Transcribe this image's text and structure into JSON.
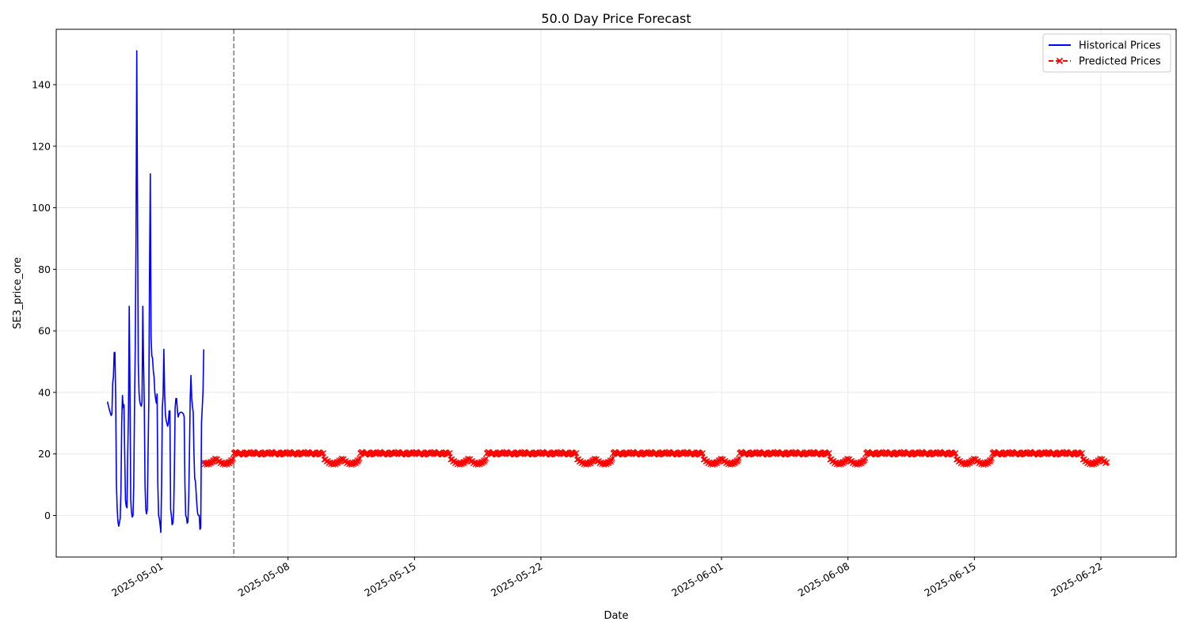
{
  "chart_data": {
    "type": "line",
    "title": "50.0 Day Price Forecast",
    "xlabel": "Date",
    "ylabel": "SE3_price_ore",
    "xlim": [
      "2025-04-25T04:00",
      "2025-06-26T04:00"
    ],
    "ylim": [
      -13.5,
      158
    ],
    "x_ticks": [
      "2025-05-01",
      "2025-05-08",
      "2025-05-15",
      "2025-05-22",
      "2025-06-01",
      "2025-06-08",
      "2025-06-15",
      "2025-06-22"
    ],
    "y_ticks": [
      0,
      20,
      40,
      60,
      80,
      100,
      120,
      140
    ],
    "grid": true,
    "legend_position": "top-right",
    "forecast_start": "2025-05-05T00:00",
    "colors": {
      "historical": "#0000ff",
      "predicted": "#ff0000",
      "divider": "#808080",
      "grid": "#e6e6e6"
    },
    "series": [
      {
        "name": "Historical Prices",
        "style": "solid",
        "points": [
          [
            "2025-04-28T00:00",
            37
          ],
          [
            "2025-04-28T03:00",
            34
          ],
          [
            "2025-04-28T05:00",
            32.5
          ],
          [
            "2025-04-28T06:00",
            33
          ],
          [
            "2025-04-28T07:00",
            43
          ],
          [
            "2025-04-28T08:00",
            45
          ],
          [
            "2025-04-28T09:00",
            53
          ],
          [
            "2025-04-28T10:00",
            53
          ],
          [
            "2025-04-28T11:00",
            38
          ],
          [
            "2025-04-28T12:00",
            10
          ],
          [
            "2025-04-28T13:00",
            2
          ],
          [
            "2025-04-28T14:00",
            -2
          ],
          [
            "2025-04-28T15:00",
            -3.5
          ],
          [
            "2025-04-28T17:00",
            -1
          ],
          [
            "2025-04-28T18:00",
            8
          ],
          [
            "2025-04-28T19:00",
            30
          ],
          [
            "2025-04-28T20:00",
            39
          ],
          [
            "2025-04-28T21:00",
            35
          ],
          [
            "2025-04-28T22:00",
            36
          ],
          [
            "2025-04-28T23:00",
            20
          ],
          [
            "2025-04-29T00:00",
            5
          ],
          [
            "2025-04-29T01:00",
            3
          ],
          [
            "2025-04-29T02:00",
            2.5
          ],
          [
            "2025-04-29T03:00",
            20
          ],
          [
            "2025-04-29T04:00",
            34
          ],
          [
            "2025-04-29T05:00",
            68
          ],
          [
            "2025-04-29T06:00",
            40
          ],
          [
            "2025-04-29T07:00",
            5
          ],
          [
            "2025-04-29T08:00",
            1
          ],
          [
            "2025-04-29T09:00",
            -0.5
          ],
          [
            "2025-04-29T10:00",
            0
          ],
          [
            "2025-04-29T11:00",
            10
          ],
          [
            "2025-04-29T12:00",
            35
          ],
          [
            "2025-04-29T13:00",
            55
          ],
          [
            "2025-04-29T14:00",
            90
          ],
          [
            "2025-04-29T15:00",
            151
          ],
          [
            "2025-04-29T16:00",
            100
          ],
          [
            "2025-04-29T17:00",
            50
          ],
          [
            "2025-04-29T18:00",
            40
          ],
          [
            "2025-04-29T19:00",
            37
          ],
          [
            "2025-04-29T20:00",
            36
          ],
          [
            "2025-04-29T21:00",
            35.5
          ],
          [
            "2025-04-29T22:00",
            37
          ],
          [
            "2025-04-29T23:00",
            68
          ],
          [
            "2025-04-30T00:00",
            50
          ],
          [
            "2025-04-30T01:00",
            36
          ],
          [
            "2025-04-30T02:00",
            10
          ],
          [
            "2025-04-30T03:00",
            2
          ],
          [
            "2025-04-30T04:00",
            0.5
          ],
          [
            "2025-04-30T05:00",
            2
          ],
          [
            "2025-04-30T06:00",
            20
          ],
          [
            "2025-04-30T07:00",
            37
          ],
          [
            "2025-04-30T08:00",
            80
          ],
          [
            "2025-04-30T09:00",
            111
          ],
          [
            "2025-04-30T10:00",
            58
          ],
          [
            "2025-04-30T11:00",
            52
          ],
          [
            "2025-04-30T12:00",
            51
          ],
          [
            "2025-04-30T13:00",
            47
          ],
          [
            "2025-04-30T14:00",
            45
          ],
          [
            "2025-04-30T15:00",
            40
          ],
          [
            "2025-04-30T16:00",
            38
          ],
          [
            "2025-04-30T17:00",
            36.5
          ],
          [
            "2025-04-30T18:00",
            39.5
          ],
          [
            "2025-04-30T19:00",
            10
          ],
          [
            "2025-04-30T20:00",
            0
          ],
          [
            "2025-04-30T21:00",
            -1
          ],
          [
            "2025-04-30T22:00",
            -3
          ],
          [
            "2025-04-30T23:00",
            -5.5
          ],
          [
            "2025-05-01T00:00",
            10
          ],
          [
            "2025-05-01T01:00",
            35
          ],
          [
            "2025-05-01T02:00",
            39
          ],
          [
            "2025-05-01T03:00",
            54
          ],
          [
            "2025-05-01T04:00",
            40
          ],
          [
            "2025-05-01T05:00",
            33
          ],
          [
            "2025-05-01T06:00",
            31
          ],
          [
            "2025-05-01T07:00",
            30
          ],
          [
            "2025-05-01T08:00",
            29
          ],
          [
            "2025-05-01T09:00",
            30
          ],
          [
            "2025-05-01T10:00",
            34
          ],
          [
            "2025-05-01T11:00",
            34
          ],
          [
            "2025-05-01T12:00",
            2
          ],
          [
            "2025-05-01T13:00",
            0
          ],
          [
            "2025-05-01T14:00",
            -3
          ],
          [
            "2025-05-01T15:00",
            -2.5
          ],
          [
            "2025-05-01T16:00",
            1
          ],
          [
            "2025-05-01T17:00",
            15
          ],
          [
            "2025-05-01T18:00",
            35
          ],
          [
            "2025-05-01T19:00",
            38
          ],
          [
            "2025-05-01T20:00",
            38
          ],
          [
            "2025-05-01T21:00",
            34
          ],
          [
            "2025-05-01T22:00",
            32
          ],
          [
            "2025-05-01T23:00",
            33
          ],
          [
            "2025-05-02T01:00",
            33.5
          ],
          [
            "2025-05-02T03:00",
            33.5
          ],
          [
            "2025-05-02T05:00",
            33
          ],
          [
            "2025-05-02T06:00",
            32
          ],
          [
            "2025-05-02T07:00",
            10
          ],
          [
            "2025-05-02T08:00",
            0
          ],
          [
            "2025-05-02T09:00",
            -0.5
          ],
          [
            "2025-05-02T10:00",
            -2.5
          ],
          [
            "2025-05-02T11:00",
            -2
          ],
          [
            "2025-05-02T12:00",
            5
          ],
          [
            "2025-05-02T13:00",
            20
          ],
          [
            "2025-05-02T14:00",
            38
          ],
          [
            "2025-05-02T15:00",
            45.5
          ],
          [
            "2025-05-02T16:00",
            38
          ],
          [
            "2025-05-02T17:00",
            35.5
          ],
          [
            "2025-05-02T18:00",
            33.5
          ],
          [
            "2025-05-02T19:00",
            20
          ],
          [
            "2025-05-02T20:00",
            12
          ],
          [
            "2025-05-02T21:00",
            11
          ],
          [
            "2025-05-02T22:00",
            7
          ],
          [
            "2025-05-02T23:00",
            3
          ],
          [
            "2025-05-03T00:00",
            0.5
          ],
          [
            "2025-05-03T01:00",
            0
          ],
          [
            "2025-05-03T02:00",
            0
          ],
          [
            "2025-05-03T03:00",
            -4.5
          ],
          [
            "2025-05-03T04:00",
            -4
          ],
          [
            "2025-05-03T05:00",
            30
          ],
          [
            "2025-05-03T06:00",
            35
          ],
          [
            "2025-05-03T07:00",
            40
          ],
          [
            "2025-05-03T08:00",
            54
          ]
        ]
      },
      {
        "name": "Predicted Prices",
        "style": "dashed",
        "marker": "x",
        "start": "2025-05-03T08:00",
        "end": "2025-06-22T08:00",
        "daily_pattern": [
          20.2,
          20.4,
          20.7,
          20.6,
          20.3,
          20.1,
          19.9,
          20.0,
          20.2,
          20.5,
          20.3,
          20.0,
          19.8,
          19.7,
          19.9,
          20.1,
          20.4,
          20.6,
          20.5,
          20.3,
          20.0,
          19.9,
          20.1,
          20.3
        ],
        "weekly_dip": {
          "start_weekday": 5,
          "duration_days": 2,
          "min": 16.5,
          "max": 19.5
        }
      }
    ]
  }
}
